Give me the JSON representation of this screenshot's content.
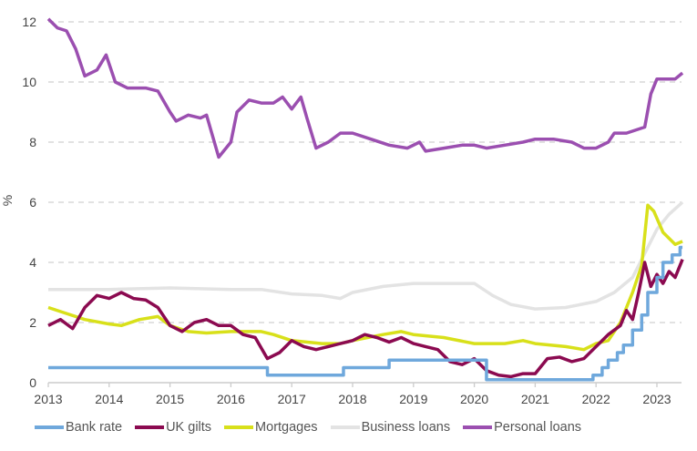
{
  "chart_data": {
    "type": "line",
    "title": "",
    "xlabel": "",
    "ylabel": "%",
    "xlim": [
      2013,
      2023.45
    ],
    "ylim": [
      0,
      12
    ],
    "x_ticks": [
      "2013",
      "2014",
      "2015",
      "2016",
      "2017",
      "2018",
      "2019",
      "2020",
      "2021",
      "2022",
      "2023"
    ],
    "y_ticks": [
      "0",
      "2",
      "4",
      "6",
      "8",
      "10",
      "12"
    ],
    "grid": "horizontal dashed",
    "legend": "bottom",
    "series": [
      {
        "name": "Bank rate",
        "color": "#6fa8dc",
        "step": true,
        "points": [
          [
            2013,
            0.5
          ],
          [
            2016.6,
            0.25
          ],
          [
            2017.85,
            0.5
          ],
          [
            2018.6,
            0.75
          ],
          [
            2020.2,
            0.1
          ],
          [
            2021.95,
            0.25
          ],
          [
            2022.1,
            0.5
          ],
          [
            2022.2,
            0.75
          ],
          [
            2022.35,
            1.0
          ],
          [
            2022.45,
            1.25
          ],
          [
            2022.6,
            1.75
          ],
          [
            2022.75,
            2.25
          ],
          [
            2022.85,
            3.0
          ],
          [
            2023.0,
            3.5
          ],
          [
            2023.1,
            4.0
          ],
          [
            2023.25,
            4.25
          ],
          [
            2023.38,
            4.5
          ],
          [
            2023.42,
            4.5
          ]
        ]
      },
      {
        "name": "UK gilts",
        "color": "#8b0a50",
        "points": [
          [
            2013,
            1.9
          ],
          [
            2013.2,
            2.1
          ],
          [
            2013.4,
            1.8
          ],
          [
            2013.6,
            2.5
          ],
          [
            2013.8,
            2.9
          ],
          [
            2014,
            2.8
          ],
          [
            2014.2,
            3.0
          ],
          [
            2014.4,
            2.8
          ],
          [
            2014.6,
            2.75
          ],
          [
            2014.8,
            2.5
          ],
          [
            2015,
            1.9
          ],
          [
            2015.2,
            1.7
          ],
          [
            2015.4,
            2.0
          ],
          [
            2015.6,
            2.1
          ],
          [
            2015.8,
            1.9
          ],
          [
            2016,
            1.9
          ],
          [
            2016.2,
            1.6
          ],
          [
            2016.4,
            1.5
          ],
          [
            2016.6,
            0.8
          ],
          [
            2016.8,
            1.0
          ],
          [
            2017,
            1.4
          ],
          [
            2017.2,
            1.2
          ],
          [
            2017.4,
            1.1
          ],
          [
            2017.6,
            1.2
          ],
          [
            2017.8,
            1.3
          ],
          [
            2018,
            1.4
          ],
          [
            2018.2,
            1.6
          ],
          [
            2018.4,
            1.5
          ],
          [
            2018.6,
            1.35
          ],
          [
            2018.8,
            1.5
          ],
          [
            2019,
            1.3
          ],
          [
            2019.2,
            1.2
          ],
          [
            2019.4,
            1.1
          ],
          [
            2019.6,
            0.7
          ],
          [
            2019.8,
            0.6
          ],
          [
            2020,
            0.8
          ],
          [
            2020.2,
            0.4
          ],
          [
            2020.4,
            0.25
          ],
          [
            2020.6,
            0.2
          ],
          [
            2020.8,
            0.3
          ],
          [
            2021,
            0.3
          ],
          [
            2021.2,
            0.8
          ],
          [
            2021.4,
            0.85
          ],
          [
            2021.6,
            0.7
          ],
          [
            2021.8,
            0.8
          ],
          [
            2022,
            1.2
          ],
          [
            2022.2,
            1.6
          ],
          [
            2022.4,
            1.9
          ],
          [
            2022.5,
            2.4
          ],
          [
            2022.6,
            2.1
          ],
          [
            2022.7,
            3.0
          ],
          [
            2022.8,
            4.0
          ],
          [
            2022.9,
            3.2
          ],
          [
            2023,
            3.6
          ],
          [
            2023.1,
            3.3
          ],
          [
            2023.2,
            3.7
          ],
          [
            2023.3,
            3.5
          ],
          [
            2023.42,
            4.1
          ]
        ]
      },
      {
        "name": "Mortgages",
        "color": "#d8e01a",
        "points": [
          [
            2013,
            2.5
          ],
          [
            2013.3,
            2.3
          ],
          [
            2013.6,
            2.1
          ],
          [
            2014,
            1.95
          ],
          [
            2014.2,
            1.9
          ],
          [
            2014.5,
            2.1
          ],
          [
            2014.8,
            2.2
          ],
          [
            2015,
            1.9
          ],
          [
            2015.3,
            1.7
          ],
          [
            2015.6,
            1.65
          ],
          [
            2016,
            1.7
          ],
          [
            2016.5,
            1.7
          ],
          [
            2016.7,
            1.6
          ],
          [
            2017,
            1.4
          ],
          [
            2017.5,
            1.3
          ],
          [
            2017.8,
            1.3
          ],
          [
            2018,
            1.4
          ],
          [
            2018.5,
            1.6
          ],
          [
            2018.8,
            1.7
          ],
          [
            2019,
            1.6
          ],
          [
            2019.5,
            1.5
          ],
          [
            2020,
            1.3
          ],
          [
            2020.5,
            1.3
          ],
          [
            2020.8,
            1.4
          ],
          [
            2021,
            1.3
          ],
          [
            2021.5,
            1.2
          ],
          [
            2021.8,
            1.1
          ],
          [
            2022,
            1.3
          ],
          [
            2022.2,
            1.4
          ],
          [
            2022.4,
            2.0
          ],
          [
            2022.6,
            3.0
          ],
          [
            2022.75,
            3.9
          ],
          [
            2022.85,
            5.9
          ],
          [
            2022.95,
            5.7
          ],
          [
            2023.1,
            5.0
          ],
          [
            2023.3,
            4.6
          ],
          [
            2023.42,
            4.7
          ]
        ]
      },
      {
        "name": "Business loans",
        "color": "#e3e3e3",
        "points": [
          [
            2013,
            3.1
          ],
          [
            2014,
            3.1
          ],
          [
            2015,
            3.15
          ],
          [
            2016,
            3.1
          ],
          [
            2016.5,
            3.1
          ],
          [
            2017,
            2.95
          ],
          [
            2017.5,
            2.9
          ],
          [
            2017.8,
            2.8
          ],
          [
            2018,
            3.0
          ],
          [
            2018.5,
            3.2
          ],
          [
            2019,
            3.3
          ],
          [
            2019.5,
            3.3
          ],
          [
            2020,
            3.3
          ],
          [
            2020.3,
            2.9
          ],
          [
            2020.6,
            2.6
          ],
          [
            2021,
            2.45
          ],
          [
            2021.5,
            2.5
          ],
          [
            2022,
            2.7
          ],
          [
            2022.3,
            3.0
          ],
          [
            2022.6,
            3.5
          ],
          [
            2022.8,
            4.3
          ],
          [
            2023,
            5.1
          ],
          [
            2023.2,
            5.6
          ],
          [
            2023.42,
            6.0
          ]
        ]
      },
      {
        "name": "Personal loans",
        "color": "#9b4fb0",
        "points": [
          [
            2013,
            12.1
          ],
          [
            2013.15,
            11.8
          ],
          [
            2013.3,
            11.7
          ],
          [
            2013.45,
            11.1
          ],
          [
            2013.6,
            10.2
          ],
          [
            2013.8,
            10.4
          ],
          [
            2013.95,
            10.9
          ],
          [
            2014.1,
            10.0
          ],
          [
            2014.3,
            9.8
          ],
          [
            2014.6,
            9.8
          ],
          [
            2014.8,
            9.7
          ],
          [
            2015,
            9.0
          ],
          [
            2015.1,
            8.7
          ],
          [
            2015.3,
            8.9
          ],
          [
            2015.5,
            8.8
          ],
          [
            2015.6,
            8.9
          ],
          [
            2015.8,
            7.5
          ],
          [
            2016,
            8.0
          ],
          [
            2016.1,
            9.0
          ],
          [
            2016.3,
            9.4
          ],
          [
            2016.5,
            9.3
          ],
          [
            2016.7,
            9.3
          ],
          [
            2016.85,
            9.5
          ],
          [
            2017,
            9.1
          ],
          [
            2017.15,
            9.5
          ],
          [
            2017.25,
            8.8
          ],
          [
            2017.4,
            7.8
          ],
          [
            2017.6,
            8.0
          ],
          [
            2017.8,
            8.3
          ],
          [
            2018,
            8.3
          ],
          [
            2018.3,
            8.1
          ],
          [
            2018.6,
            7.9
          ],
          [
            2018.9,
            7.8
          ],
          [
            2019.1,
            8.0
          ],
          [
            2019.2,
            7.7
          ],
          [
            2019.5,
            7.8
          ],
          [
            2019.8,
            7.9
          ],
          [
            2020,
            7.9
          ],
          [
            2020.2,
            7.8
          ],
          [
            2020.5,
            7.9
          ],
          [
            2020.8,
            8.0
          ],
          [
            2021,
            8.1
          ],
          [
            2021.3,
            8.1
          ],
          [
            2021.6,
            8.0
          ],
          [
            2021.8,
            7.8
          ],
          [
            2022,
            7.8
          ],
          [
            2022.2,
            8.0
          ],
          [
            2022.3,
            8.3
          ],
          [
            2022.5,
            8.3
          ],
          [
            2022.8,
            8.5
          ],
          [
            2022.9,
            9.6
          ],
          [
            2023,
            10.1
          ],
          [
            2023.2,
            10.1
          ],
          [
            2023.3,
            10.1
          ],
          [
            2023.42,
            10.3
          ]
        ]
      }
    ]
  }
}
